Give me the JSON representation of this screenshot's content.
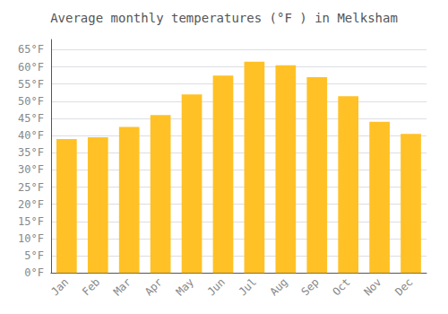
{
  "chart_data": {
    "type": "bar",
    "title": "Average monthly temperatures (°F ) in Melksham",
    "categories": [
      "Jan",
      "Feb",
      "Mar",
      "Apr",
      "May",
      "Jun",
      "Jul",
      "Aug",
      "Sep",
      "Oct",
      "Nov",
      "Dec"
    ],
    "values": [
      39,
      39.5,
      42.5,
      46,
      52,
      57.5,
      61.5,
      60.5,
      57,
      51.5,
      44,
      40.5
    ],
    "color": "#FFC125",
    "ylim": [
      0,
      68
    ],
    "yticks": [
      {
        "value": 0,
        "label": "0°F"
      },
      {
        "value": 5,
        "label": "5°F"
      },
      {
        "value": 10,
        "label": "10°F"
      },
      {
        "value": 15,
        "label": "15°F"
      },
      {
        "value": 20,
        "label": "20°F"
      },
      {
        "value": 25,
        "label": "25°F"
      },
      {
        "value": 30,
        "label": "30°F"
      },
      {
        "value": 35,
        "label": "35°F"
      },
      {
        "value": 40,
        "label": "40°F"
      },
      {
        "value": 45,
        "label": "45°F"
      },
      {
        "value": 50,
        "label": "50°F"
      },
      {
        "value": 55,
        "label": "55°F"
      },
      {
        "value": 60,
        "label": "60°F"
      },
      {
        "value": 65,
        "label": "65°F"
      }
    ],
    "grid": true
  }
}
